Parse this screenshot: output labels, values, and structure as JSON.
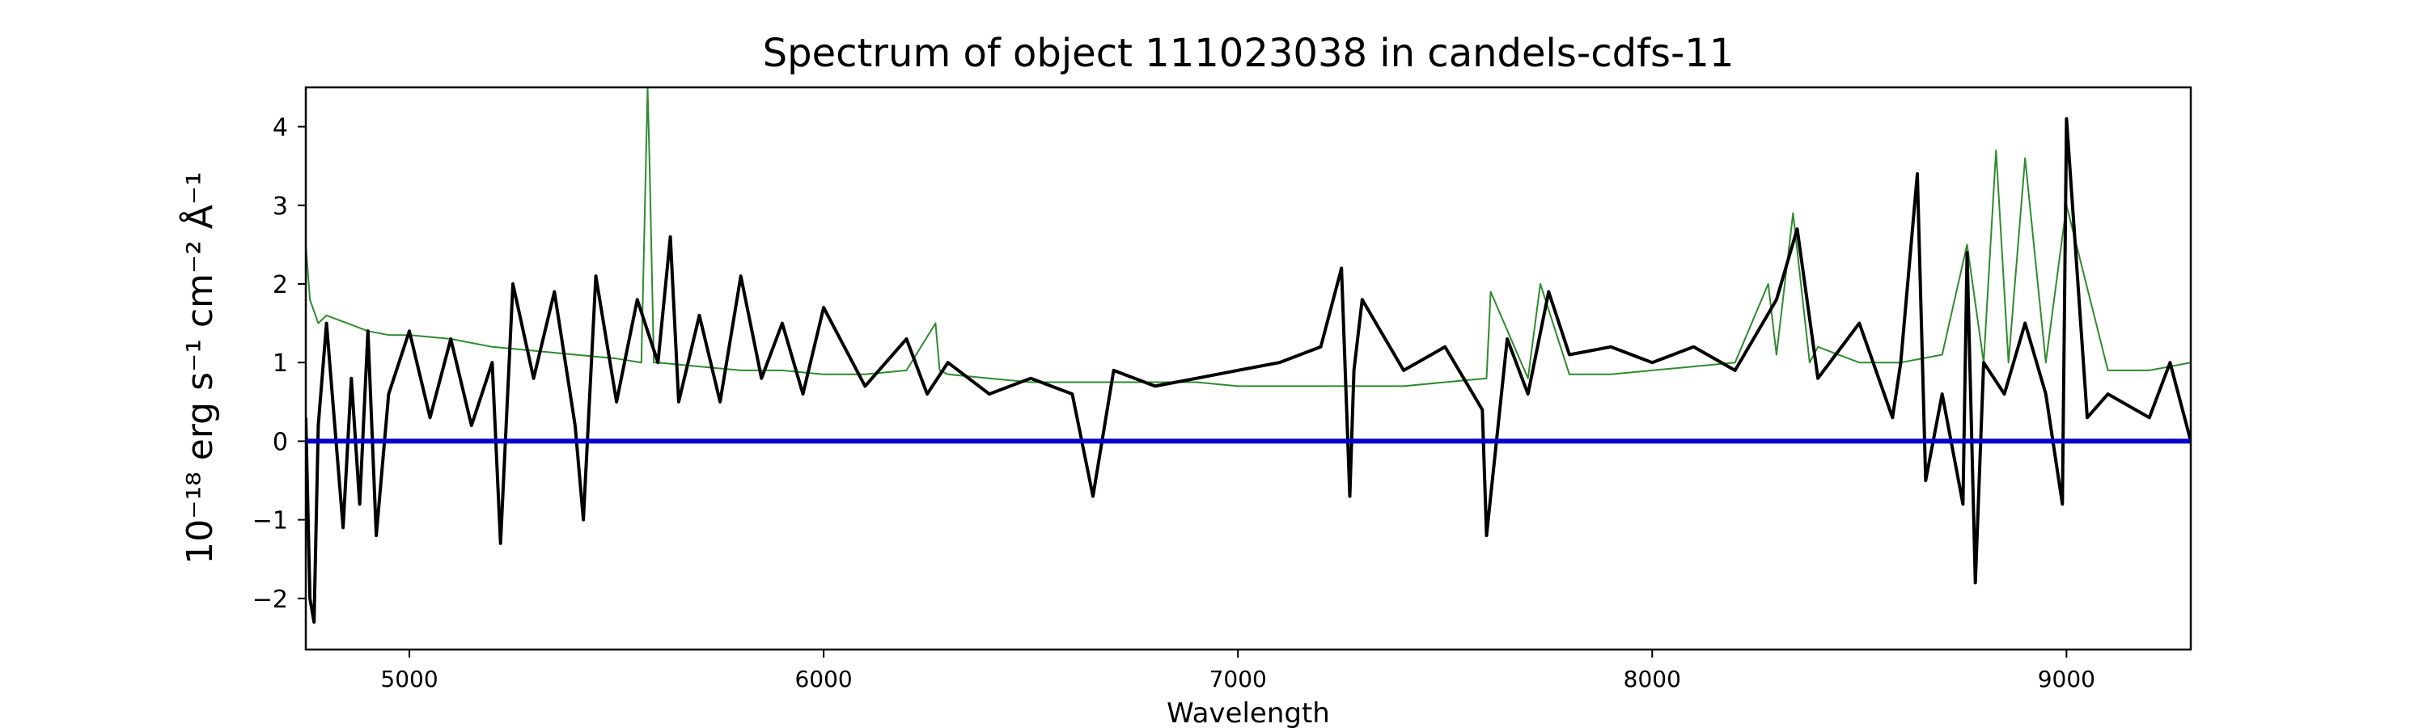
{
  "chart_data": {
    "type": "line",
    "title": "Spectrum of object 111023038 in candels-cdfs-11",
    "xlabel": "Wavelength",
    "ylabel": "10⁻¹⁸ erg s⁻¹ cm⁻² Å⁻¹",
    "xlim": [
      4750,
      9300
    ],
    "ylim": [
      -2.65,
      4.5
    ],
    "x_ticks": [
      5000,
      6000,
      7000,
      8000,
      9000
    ],
    "x_tick_labels": [
      "5000",
      "6000",
      "7000",
      "8000",
      "9000"
    ],
    "y_ticks": [
      -2,
      -1,
      0,
      1,
      2,
      3,
      4
    ],
    "y_tick_labels": [
      "−2",
      "−1",
      "0",
      "1",
      "2",
      "3",
      "4"
    ],
    "grid": false,
    "series": [
      {
        "color": "#2e8b2e",
        "x": [
          4750,
          4760,
          4780,
          4800,
          4850,
          4900,
          4950,
          5000,
          5100,
          5200,
          5300,
          5400,
          5500,
          5560,
          5575,
          5580,
          5590,
          5600,
          5700,
          5800,
          5900,
          6000,
          6100,
          6200,
          6270,
          6280,
          6300,
          6400,
          6500,
          6600,
          6700,
          6800,
          6900,
          7000,
          7100,
          7200,
          7300,
          7400,
          7500,
          7600,
          7610,
          7700,
          7730,
          7800,
          7900,
          8000,
          8100,
          8200,
          8280,
          8300,
          8340,
          8380,
          8400,
          8500,
          8600,
          8700,
          8760,
          8800,
          8830,
          8860,
          8900,
          8950,
          9000,
          9100,
          9200,
          9300
        ],
        "y": [
          2.5,
          1.8,
          1.5,
          1.6,
          1.5,
          1.4,
          1.35,
          1.35,
          1.3,
          1.2,
          1.15,
          1.1,
          1.05,
          1.0,
          4.5,
          3.5,
          1.0,
          1.0,
          0.95,
          0.9,
          0.9,
          0.85,
          0.85,
          0.9,
          1.5,
          0.9,
          0.85,
          0.8,
          0.75,
          0.75,
          0.75,
          0.75,
          0.75,
          0.7,
          0.7,
          0.7,
          0.7,
          0.7,
          0.75,
          0.8,
          1.9,
          0.8,
          2.0,
          0.85,
          0.85,
          0.9,
          0.95,
          1.0,
          2.0,
          1.1,
          2.9,
          1.0,
          1.2,
          1.0,
          1.0,
          1.1,
          2.5,
          1.0,
          3.7,
          1.0,
          3.6,
          1.0,
          3.0,
          0.9,
          0.9,
          1.0
        ]
      },
      {
        "color": "#000000",
        "x": [
          4750,
          4760,
          4770,
          4780,
          4800,
          4820,
          4840,
          4860,
          4880,
          4900,
          4920,
          4950,
          5000,
          5050,
          5100,
          5150,
          5200,
          5220,
          5250,
          5300,
          5350,
          5400,
          5420,
          5450,
          5500,
          5550,
          5600,
          5630,
          5650,
          5700,
          5750,
          5800,
          5850,
          5900,
          5950,
          6000,
          6100,
          6200,
          6250,
          6300,
          6400,
          6500,
          6600,
          6650,
          6700,
          6800,
          6900,
          7000,
          7100,
          7200,
          7250,
          7270,
          7280,
          7300,
          7400,
          7500,
          7590,
          7600,
          7650,
          7700,
          7750,
          7800,
          7900,
          8000,
          8100,
          8200,
          8300,
          8350,
          8400,
          8500,
          8580,
          8600,
          8640,
          8660,
          8700,
          8750,
          8760,
          8780,
          8800,
          8850,
          8900,
          8950,
          8990,
          9000,
          9050,
          9100,
          9200,
          9250,
          9300
        ],
        "y": [
          0.3,
          -2.0,
          -2.3,
          0.2,
          1.5,
          0.2,
          -1.1,
          0.8,
          -0.8,
          1.4,
          -1.2,
          0.6,
          1.4,
          0.3,
          1.3,
          0.2,
          1.0,
          -1.3,
          2.0,
          0.8,
          1.9,
          0.2,
          -1.0,
          2.1,
          0.5,
          1.8,
          1.0,
          2.6,
          0.5,
          1.6,
          0.5,
          2.1,
          0.8,
          1.5,
          0.6,
          1.7,
          0.7,
          1.3,
          0.6,
          1.0,
          0.6,
          0.8,
          0.6,
          -0.7,
          0.9,
          0.7,
          0.8,
          0.9,
          1.0,
          1.2,
          2.2,
          -0.7,
          0.9,
          1.8,
          0.9,
          1.2,
          0.4,
          -1.2,
          1.3,
          0.6,
          1.9,
          1.1,
          1.2,
          1.0,
          1.2,
          0.9,
          1.8,
          2.7,
          0.8,
          1.5,
          0.3,
          1.0,
          3.4,
          -0.5,
          0.6,
          -0.8,
          2.4,
          -1.8,
          1.0,
          0.6,
          1.5,
          0.6,
          -0.8,
          4.1,
          0.3,
          0.6,
          0.3,
          1.0,
          0.0
        ]
      },
      {
        "color": "#0000cc",
        "x": [
          4750,
          9300
        ],
        "y": [
          0,
          0
        ]
      }
    ]
  }
}
